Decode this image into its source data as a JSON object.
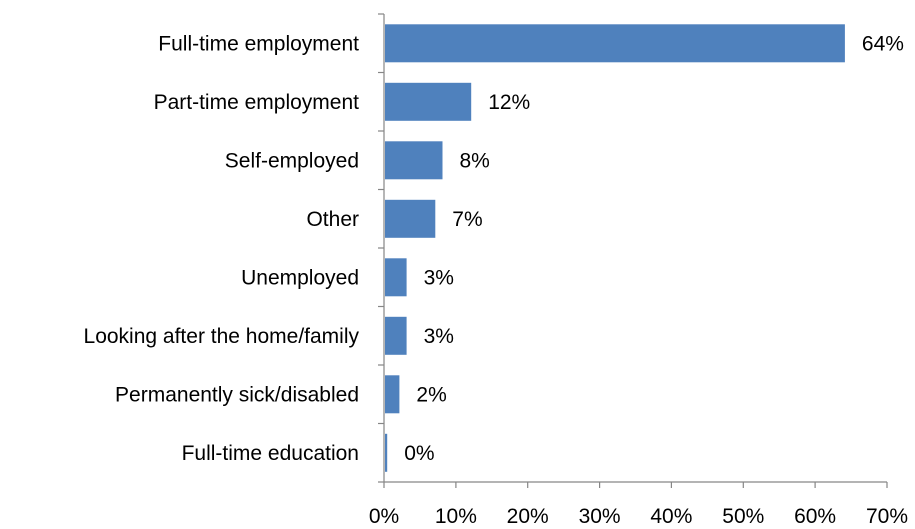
{
  "chart_data": {
    "type": "bar",
    "orientation": "horizontal",
    "categories": [
      "Full-time employment",
      "Part-time employment",
      "Self-employed",
      "Other",
      "Unemployed",
      "Looking after the home/family",
      "Permanently sick/disabled",
      "Full-time education"
    ],
    "values": [
      64,
      12,
      8,
      7,
      3,
      3,
      2,
      0.3
    ],
    "data_labels": [
      "64%",
      "12%",
      "8%",
      "7%",
      "3%",
      "3%",
      "2%",
      "0%"
    ],
    "xlim": [
      0,
      70
    ],
    "x_ticks": [
      0,
      10,
      20,
      30,
      40,
      50,
      60,
      70
    ],
    "x_tick_labels": [
      "0%",
      "10%",
      "20%",
      "30%",
      "40%",
      "50%",
      "60%",
      "70%"
    ],
    "bar_color": "#4f81bd",
    "axis_color": "#868686",
    "grid": false,
    "legend": "none"
  }
}
